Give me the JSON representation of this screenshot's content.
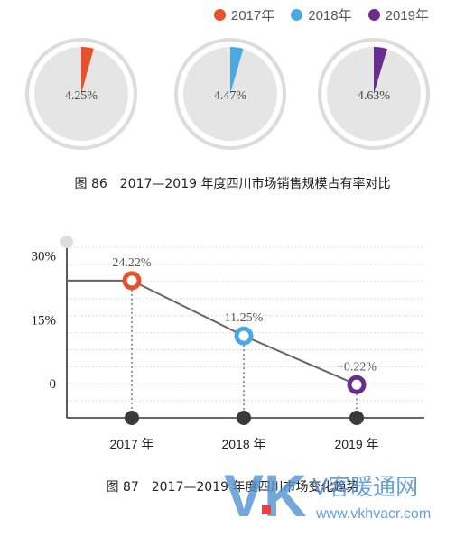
{
  "legend": [
    {
      "label": "2017年",
      "color": "#e8502a"
    },
    {
      "label": "2018年",
      "color": "#4aa9e2"
    },
    {
      "label": "2019年",
      "color": "#6a2c8f"
    }
  ],
  "figure86": {
    "caption": "图 86　2017—2019 年度四川市场销售规模占有率对比"
  },
  "figure87": {
    "caption": "图 87　2017—2019 年度四川市场变化趋势"
  },
  "watermark": {
    "logo": "VK",
    "text": "V客暖通网",
    "url": "www.vkhvacr.com"
  },
  "chart_data": [
    {
      "type": "pie",
      "slices": [
        {
          "year": "2017年",
          "value": 4.25,
          "label": "4.25%",
          "color": "#e8502a"
        },
        {
          "year": "2018年",
          "value": 4.47,
          "label": "4.47%",
          "color": "#4aa9e2"
        },
        {
          "year": "2019年",
          "value": 4.63,
          "label": "4.63%",
          "color": "#6a2c8f"
        }
      ],
      "background_color": "#e5e5e5"
    },
    {
      "type": "line",
      "categories": [
        "2017 年",
        "2018 年",
        "2019 年"
      ],
      "values": [
        24.22,
        11.25,
        -0.22
      ],
      "data_labels": [
        "24.22%",
        "11.25%",
        "−0.22%"
      ],
      "point_colors": [
        "#e8502a",
        "#4aa9e2",
        "#6a2c8f"
      ],
      "yticks": [
        {
          "value": 30,
          "label": "30%"
        },
        {
          "value": 15,
          "label": "15%"
        },
        {
          "value": 0,
          "label": "0"
        }
      ],
      "ylim": [
        -8,
        35
      ],
      "grid": true
    }
  ]
}
